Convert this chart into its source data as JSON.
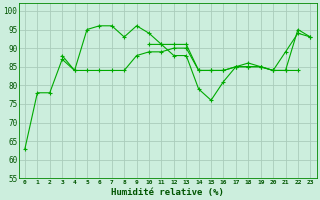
{
  "xlabel": "Humidité relative (%)",
  "background_color": "#cceedd",
  "grid_color": "#aaccbb",
  "line_color": "#00aa00",
  "xlim": [
    -0.5,
    23.5
  ],
  "ylim": [
    55,
    102
  ],
  "yticks": [
    55,
    60,
    65,
    70,
    75,
    80,
    85,
    90,
    95,
    100
  ],
  "xticks": [
    0,
    1,
    2,
    3,
    4,
    5,
    6,
    7,
    8,
    9,
    10,
    11,
    12,
    13,
    14,
    15,
    16,
    17,
    18,
    19,
    20,
    21,
    22,
    23
  ],
  "line1_x": [
    0,
    1,
    2,
    3,
    4,
    5,
    6,
    7,
    8,
    9,
    10,
    11,
    12,
    13,
    14,
    15,
    16,
    17,
    18,
    19,
    20,
    21,
    22,
    23
  ],
  "line1_y": [
    63,
    78,
    78,
    87,
    84,
    95,
    96,
    96,
    93,
    96,
    94,
    91,
    88,
    88,
    79,
    76,
    81,
    85,
    86,
    85,
    84,
    84,
    95,
    93
  ],
  "line2_x": [
    3,
    4,
    5,
    6,
    7,
    8,
    9,
    10,
    11,
    12,
    13,
    14,
    15,
    16,
    17,
    18,
    19,
    20,
    21,
    22
  ],
  "line2_y": [
    88,
    84,
    84,
    84,
    84,
    84,
    88,
    89,
    89,
    90,
    90,
    84,
    84,
    84,
    85,
    85,
    85,
    84,
    84,
    84
  ],
  "line3_x": [
    10,
    11,
    12,
    13,
    14,
    15,
    16,
    17,
    18,
    19,
    20,
    21,
    22,
    23
  ],
  "line3_y": [
    91,
    91,
    91,
    91,
    84,
    84,
    84,
    85,
    85,
    85,
    84,
    89,
    94,
    93
  ]
}
